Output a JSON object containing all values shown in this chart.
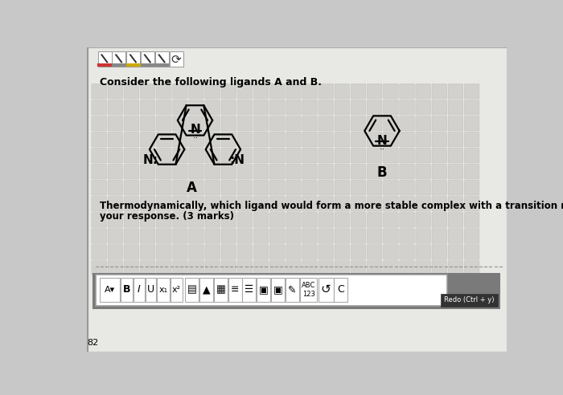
{
  "bg_color": "#c8c8c8",
  "page_bg": "#e8e8e4",
  "toolbar_bg": "#7a7a7a",
  "title_text": "Consider the following ligands A and B.",
  "label_A": "A",
  "label_B": "B",
  "question_text": "Thermodynamically, which ligand would form a more stable complex with a transition metal? Justif",
  "question_text2": "your response. (3 marks)",
  "page_number": "82",
  "redo_text": "Redo (Ctrl + y)",
  "pencil_colors": [
    "#cc3333",
    "#888888",
    "#ccaa00",
    "#888888",
    "#888888"
  ],
  "tile_color": "#c0bfbb",
  "tile_border": "#b0afab"
}
